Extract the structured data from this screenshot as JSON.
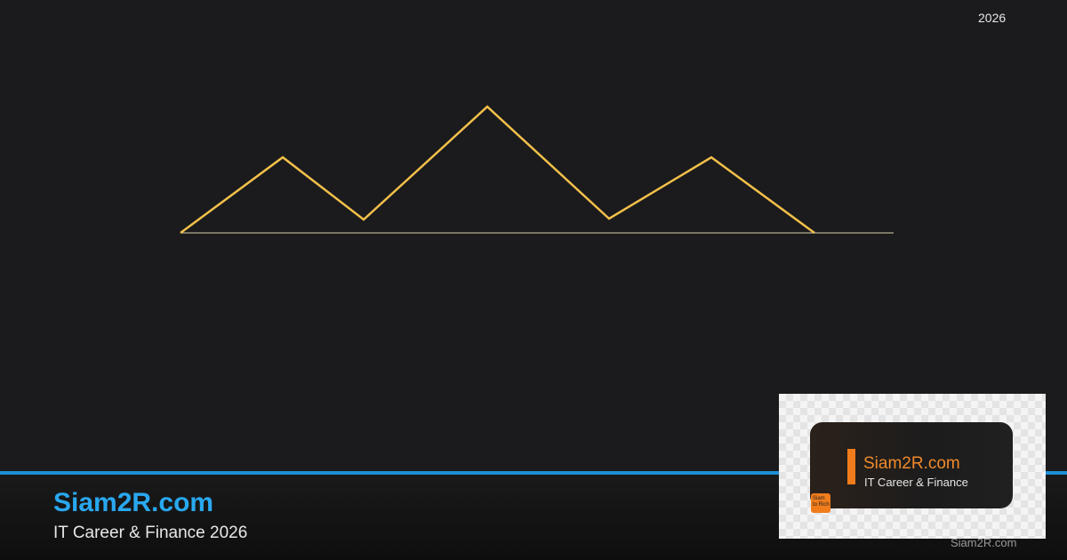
{
  "corner_year": "2026",
  "brand": {
    "title": "Siam2R.com",
    "subtitle": "IT Career & Finance 2026"
  },
  "card": {
    "title": "Siam2R.com",
    "subtitle": "IT Career & Finance",
    "badge": "Siam to Rich"
  },
  "watermark": "Siam2R.com"
}
